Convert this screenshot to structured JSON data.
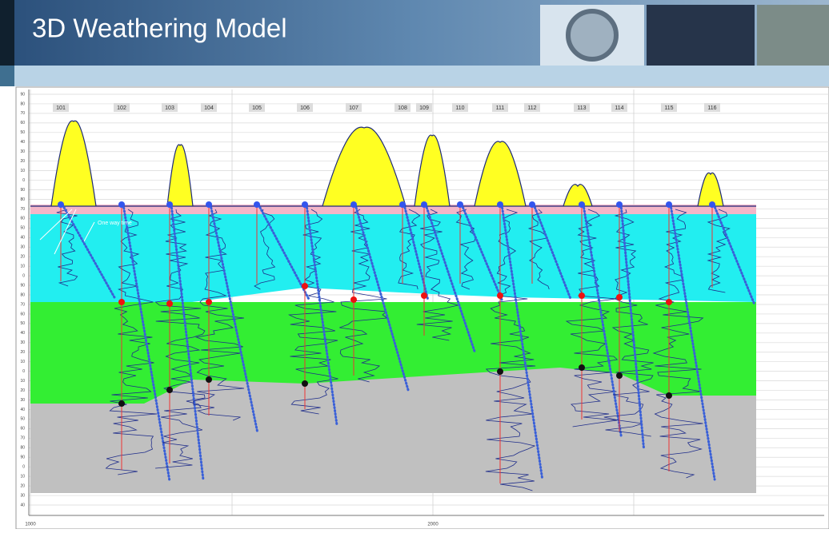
{
  "header": {
    "title": "3D Weathering Model"
  },
  "wells": [
    {
      "label": "101"
    },
    {
      "label": "102"
    },
    {
      "label": "103"
    },
    {
      "label": "104"
    },
    {
      "label": "105"
    },
    {
      "label": "106"
    },
    {
      "label": "107"
    },
    {
      "label": "108"
    },
    {
      "label": "109"
    },
    {
      "label": "110"
    },
    {
      "label": "111"
    },
    {
      "label": "112"
    },
    {
      "label": "113"
    },
    {
      "label": "114"
    },
    {
      "label": "115"
    },
    {
      "label": "116"
    }
  ],
  "annotation": "One way time",
  "axis": {
    "left_labels": [
      "90",
      "80",
      "70",
      "60",
      "50",
      "40",
      "30",
      "20",
      "10",
      "0",
      "90",
      "80",
      "70",
      "60",
      "50",
      "40",
      "30",
      "20",
      "10",
      "0",
      "90",
      "80",
      "70",
      "60",
      "50",
      "40",
      "30",
      "20",
      "10",
      "0",
      "10",
      "20",
      "30",
      "40",
      "50",
      "60",
      "70",
      "80",
      "90",
      "0",
      "10",
      "20",
      "30",
      "40"
    ],
    "bottom_labels": [
      "1000",
      "2000"
    ]
  }
}
